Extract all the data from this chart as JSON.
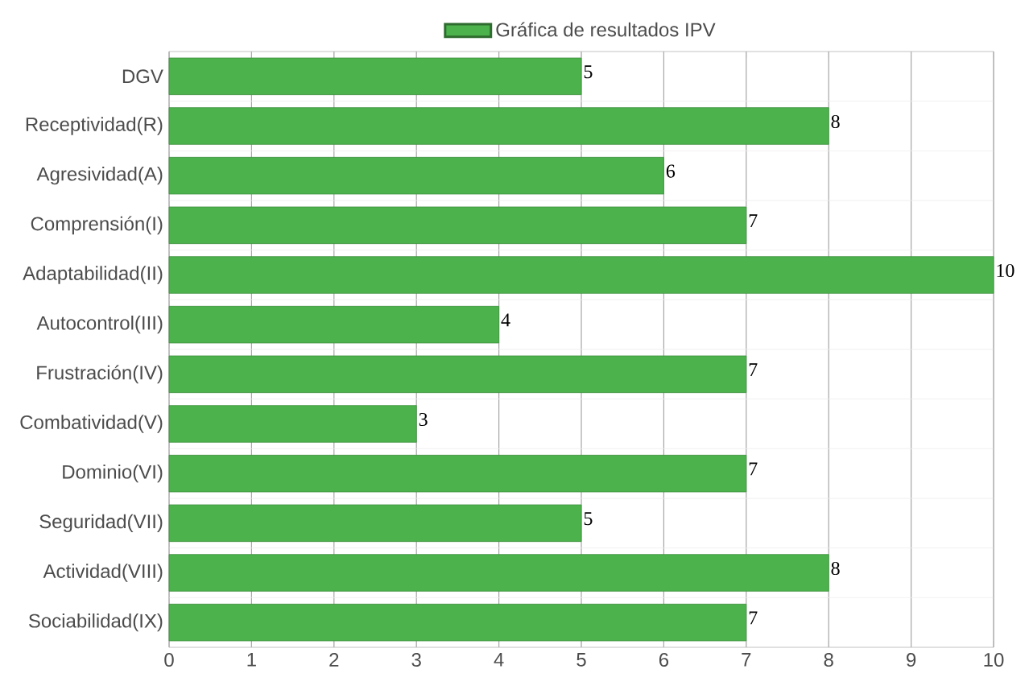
{
  "chart_data": {
    "type": "bar",
    "orientation": "horizontal",
    "categories": [
      "DGV",
      "Receptividad(R)",
      "Agresividad(A)",
      "Comprensión(I)",
      "Adaptabilidad(II)",
      "Autocontrol(III)",
      "Frustración(IV)",
      "Combatividad(V)",
      "Dominio(VI)",
      "Seguridad(VII)",
      "Actividad(VIII)",
      "Sociabilidad(IX)"
    ],
    "series": [
      {
        "name": "Gráfica de resultados IPV",
        "color": "#4cb34c",
        "values": [
          5,
          8,
          6,
          7,
          10,
          4,
          7,
          3,
          7,
          5,
          8,
          7
        ]
      }
    ],
    "xlim": [
      0,
      10
    ],
    "xticks": [
      0,
      1,
      2,
      3,
      4,
      5,
      6,
      7,
      8,
      9,
      10
    ],
    "grid": true,
    "legend": "top",
    "data_labels": true
  }
}
